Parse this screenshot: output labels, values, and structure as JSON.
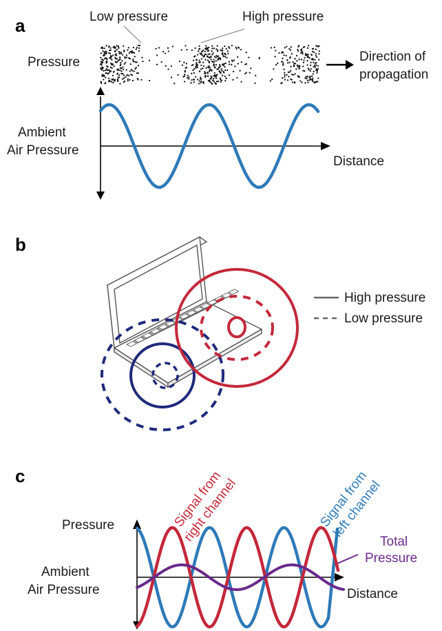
{
  "panel_a": {
    "letter": "a",
    "low_pressure_label": "Low pressure",
    "high_pressure_label": "High pressure",
    "pressure_label": "Pressure",
    "direction_line1": "Direction of",
    "direction_line2": "propagation",
    "ambient_line1": "Ambient",
    "ambient_line2": "Air Pressure",
    "distance_label": "Distance",
    "wave_color": "#2e7ab8"
  },
  "panel_b": {
    "letter": "b",
    "legend_high": "High pressure",
    "legend_low": "Low pressure",
    "right_source_color": "#c4283a",
    "left_source_color": "#1f2a7c"
  },
  "panel_c": {
    "letter": "c",
    "pressure_label": "Pressure",
    "ambient_line1": "Ambient",
    "ambient_line2": "Air Pressure",
    "distance_label": "Distance",
    "right_signal_line1": "Signal from",
    "right_signal_line2": "right channel",
    "left_signal_line1": "Signal from",
    "left_signal_line2": "left channel",
    "total_line1": "Total",
    "total_line2": "Pressure",
    "right_color": "#c4283a",
    "left_color": "#2e7ab8",
    "total_color": "#6a2a8c"
  }
}
